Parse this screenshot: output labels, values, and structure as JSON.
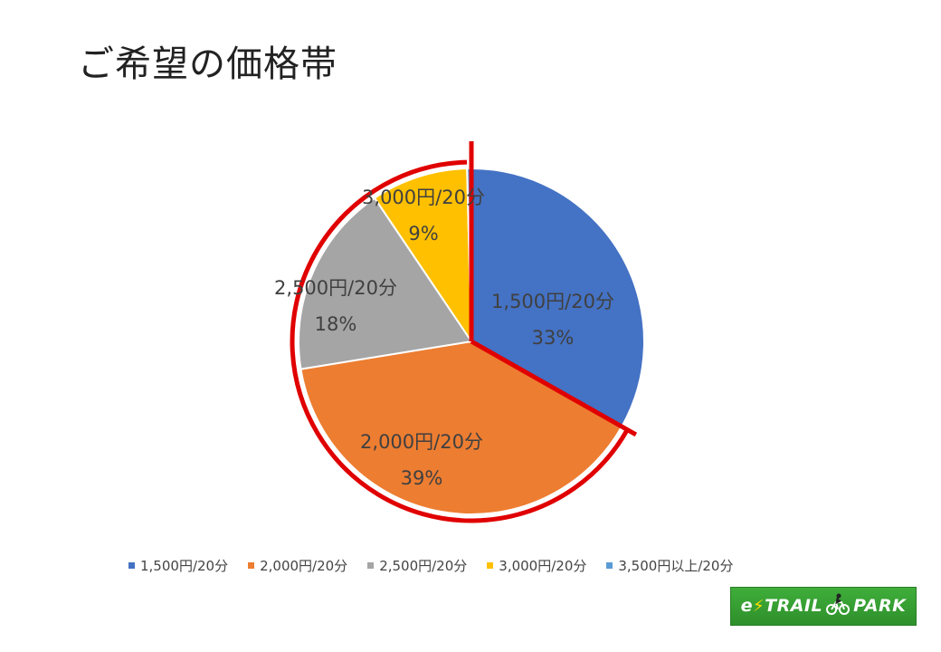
{
  "page": {
    "title": "ご希望の価格帯"
  },
  "chart_data": {
    "type": "pie",
    "title": "",
    "categories": [
      "1,500円/20分",
      "2,000円/20分",
      "2,500円/20分",
      "3,000円/20分",
      "3,500円以上/20分"
    ],
    "values": [
      33,
      39,
      18,
      9,
      0.4
    ],
    "value_labels": [
      "33%",
      "39%",
      "18%",
      "9%",
      ""
    ],
    "colors": [
      "#4472c4",
      "#ed7d31",
      "#a5a5a5",
      "#ffc000",
      "#5b9bd5"
    ],
    "legend_position": "bottom",
    "highlight_color": "#e00000"
  },
  "legend": {
    "items": [
      {
        "label": "1,500円/20分",
        "color": "#4472c4"
      },
      {
        "label": "2,000円/20分",
        "color": "#ed7d31"
      },
      {
        "label": "2,500円/20分",
        "color": "#a5a5a5"
      },
      {
        "label": "3,000円/20分",
        "color": "#ffc000"
      },
      {
        "label": "3,500円以上/20分",
        "color": "#5b9bd5"
      }
    ]
  },
  "logo": {
    "text_left": "e",
    "text_mid": "TRAIL",
    "text_right": "PARK"
  }
}
